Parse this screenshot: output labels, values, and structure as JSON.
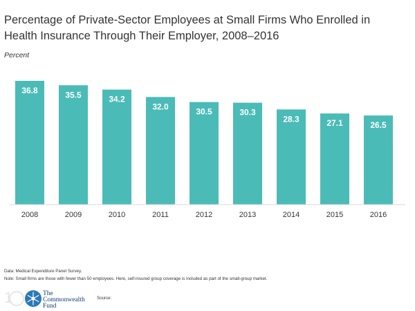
{
  "chart_data": {
    "type": "bar",
    "title": "Percentage of Private-Sector Employees at Small Firms Who Enrolled in Health Insurance Through Their Employer, 2008–2016",
    "ylabel": "Percent",
    "xlabel": "",
    "categories": [
      "2008",
      "2009",
      "2010",
      "2011",
      "2012",
      "2013",
      "2014",
      "2015",
      "2016"
    ],
    "values": [
      36.8,
      35.5,
      34.2,
      32.0,
      30.5,
      30.3,
      28.3,
      27.1,
      26.5
    ],
    "value_labels": [
      "36.8",
      "35.5",
      "34.2",
      "32.0",
      "30.5",
      "30.3",
      "28.3",
      "27.1",
      "26.5"
    ],
    "ylim": [
      0,
      36.8
    ],
    "grid": false,
    "bar_color": "#4bbbb7",
    "label_color": "#ffffff"
  },
  "notes": {
    "data": "Data: Medical Expenditure Panel Survey.",
    "note": "Note: Small firms are those with fewer than 50 employees. Here, self-insured group coverage is included as part of the small-group market."
  },
  "footer": {
    "logo_line1": "The",
    "logo_line2": "Commonwealth",
    "logo_line3": "Fund",
    "source_label": "Source:"
  },
  "colors": {
    "brand_navy": "#0f3c6e",
    "snowflake_blue": "#2a7ab8"
  }
}
